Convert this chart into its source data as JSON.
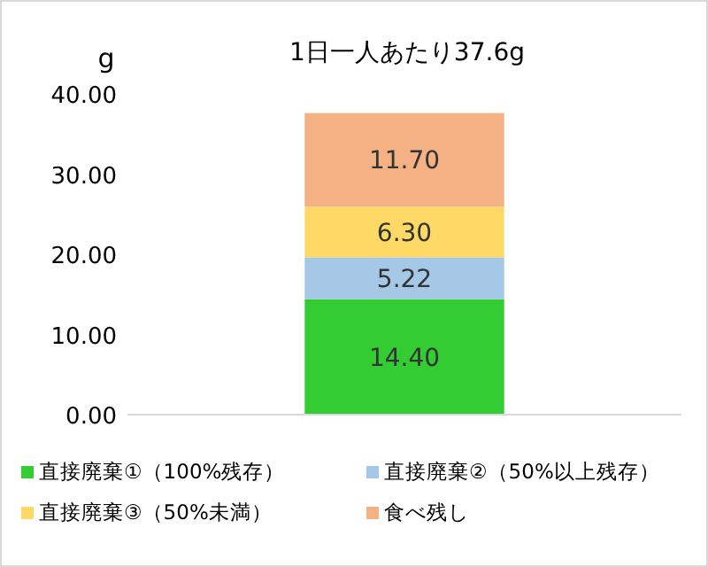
{
  "chart_data": {
    "type": "bar",
    "title": "1日一人あたり37.6g",
    "ylabel": "g",
    "categories": [
      null
    ],
    "stacked": true,
    "legend": "bottom",
    "ylim": [
      0,
      40
    ],
    "yticks": [
      {
        "value": 0,
        "label": "0.00"
      },
      {
        "value": 10,
        "label": "10.00"
      },
      {
        "value": 20,
        "label": "20.00"
      },
      {
        "value": 30,
        "label": "30.00"
      },
      {
        "value": 40,
        "label": "40.00"
      }
    ],
    "series": [
      {
        "name": "直接廃棄①（100%残存）",
        "color": "#33cc33",
        "values": [
          14.4
        ],
        "value_labels": [
          "14.40"
        ]
      },
      {
        "name": "直接廃棄②（50%以上残存）",
        "color": "#a4c8e6",
        "values": [
          5.22
        ],
        "value_labels": [
          "5.22"
        ]
      },
      {
        "name": "直接廃棄③（50%未満）",
        "color": "#ffd966",
        "values": [
          6.3
        ],
        "value_labels": [
          "6.30"
        ]
      },
      {
        "name": "食べ残し",
        "color": "#f4b183",
        "values": [
          11.7
        ],
        "value_labels": [
          "11.70"
        ]
      }
    ]
  }
}
